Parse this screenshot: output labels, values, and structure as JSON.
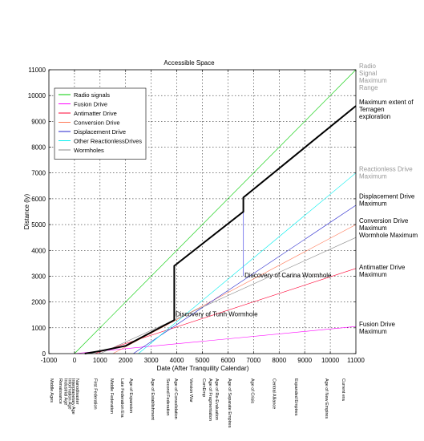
{
  "chart_data": {
    "type": "line",
    "title": "Accessible Space",
    "xlabel": "Date (After Tranquility Calendar)",
    "ylabel": "Distance (ly)",
    "xlim": [
      -1000,
      11000
    ],
    "ylim": [
      0,
      11000
    ],
    "xticks": [
      -1000,
      0,
      1000,
      2000,
      3000,
      4000,
      5000,
      6000,
      7000,
      8000,
      9000,
      10000,
      11000
    ],
    "yticks": [
      0,
      1000,
      2000,
      3000,
      4000,
      5000,
      6000,
      7000,
      8000,
      9000,
      10000,
      11000
    ],
    "grid": true,
    "legend_position": "top-left",
    "series": [
      {
        "name": "Radio signals",
        "color": "#00cc00",
        "width": 0.6,
        "x": [
          0,
          11000
        ],
        "y": [
          0,
          11000
        ]
      },
      {
        "name": "Fusion Drive",
        "color": "#ff00ff",
        "width": 0.6,
        "x": [
          0,
          11000
        ],
        "y": [
          0,
          1050
        ]
      },
      {
        "name": "Antimatter Drive",
        "color": "#ff0033",
        "width": 0.6,
        "x": [
          800,
          11000
        ],
        "y": [
          0,
          3300
        ]
      },
      {
        "name": "Conversion Drive",
        "color": "#ff7755",
        "width": 0.6,
        "x": [
          1500,
          11000
        ],
        "y": [
          0,
          5000
        ]
      },
      {
        "name": "Displacement Drive",
        "color": "#2222cc",
        "width": 0.6,
        "x": [
          2300,
          11000
        ],
        "y": [
          0,
          5750
        ]
      },
      {
        "name": "Other ReactionlessDrives",
        "color": "#00eeee",
        "width": 0.6,
        "x": [
          2500,
          11000
        ],
        "y": [
          0,
          7000
        ]
      },
      {
        "name": "Wormholes",
        "color": "#888888",
        "width": 0.6,
        "x": [
          1000,
          11000
        ],
        "y": [
          0,
          4500
        ]
      },
      {
        "name": "Carina wormhole branch",
        "color": "#7777ee",
        "width": 0.9,
        "x": [
          6600,
          6600
        ],
        "y": [
          5500,
          3000
        ]
      },
      {
        "name": "Maximum extent of Terragen exploration",
        "color": "#000000",
        "width": 2,
        "x": [
          400,
          1000,
          2000,
          3900,
          3900,
          6600,
          6600,
          11000
        ],
        "y": [
          0,
          100,
          300,
          1300,
          3400,
          5500,
          6050,
          9600
        ]
      }
    ],
    "annotations": [
      {
        "text": "Discovery of Carina Wormhole",
        "x": 6650,
        "y": 2950
      },
      {
        "text": "Discovery of Tunh Wormhole",
        "x": 3950,
        "y": 1450
      }
    ],
    "right_labels": [
      {
        "lines": [
          "Radio",
          "Signal",
          "Maximum",
          "Range"
        ],
        "y": 11000,
        "color": "#999999"
      },
      {
        "lines": [
          "Maximum extent of",
          "Terragen",
          "exploration"
        ],
        "y": 9600,
        "color": "#000000"
      },
      {
        "lines": [
          "Reactionless Drive",
          "Maximum"
        ],
        "y": 7000,
        "color": "#999999"
      },
      {
        "lines": [
          "Displacement Drive",
          "Maximum"
        ],
        "y": 5950,
        "color": "#000000"
      },
      {
        "lines": [
          "Conversion Drive",
          "Maximum"
        ],
        "y": 5000,
        "color": "#000000"
      },
      {
        "lines": [
          "Wormhole Maximum"
        ],
        "y": 4450,
        "color": "#000000"
      },
      {
        "lines": [
          "Antimatter Drive",
          "Maximum"
        ],
        "y": 3200,
        "color": "#000000"
      },
      {
        "lines": [
          "Fusion Drive",
          "Maximum"
        ],
        "y": 1000,
        "color": "#000000"
      }
    ],
    "eras": [
      {
        "text": "Middle Ages",
        "x": -1000
      },
      {
        "text": "Renaissance",
        "x": -650
      },
      {
        "text": "Industrial Age",
        "x": -450
      },
      {
        "text": "Information Age",
        "x": -300
      },
      {
        "text": "Interplanetary Age",
        "x": -150
      },
      {
        "text": "Nanodisaster",
        "x": 0
      },
      {
        "text": "First Federation",
        "x": 700
      },
      {
        "text": "Middle Federation",
        "x": 1350
      },
      {
        "text": "Late Federation Era",
        "x": 1750
      },
      {
        "text": "Age of Expansion",
        "x": 2100
      },
      {
        "text": "Age of Establishment",
        "x": 2950
      },
      {
        "text": "Second Federation",
        "x": 3550
      },
      {
        "text": "Age of Consolidation",
        "x": 3850
      },
      {
        "text": "Version War",
        "x": 4450
      },
      {
        "text": "ComEmp",
        "x": 4950
      },
      {
        "text": "Age of Fragmentation",
        "x": 5200
      },
      {
        "text": "Age of Re-Evaluation",
        "x": 5450
      },
      {
        "text": "Age of Separate Empires",
        "x": 5950
      },
      {
        "text": "Age of Crisis",
        "x": 6850
      },
      {
        "text": "Central Alliance",
        "x": 7700
      },
      {
        "text": "Expanded Empires",
        "x": 8550
      },
      {
        "text": "Age of New Empires",
        "x": 9750
      },
      {
        "text": "Current era",
        "x": 10400
      }
    ]
  }
}
